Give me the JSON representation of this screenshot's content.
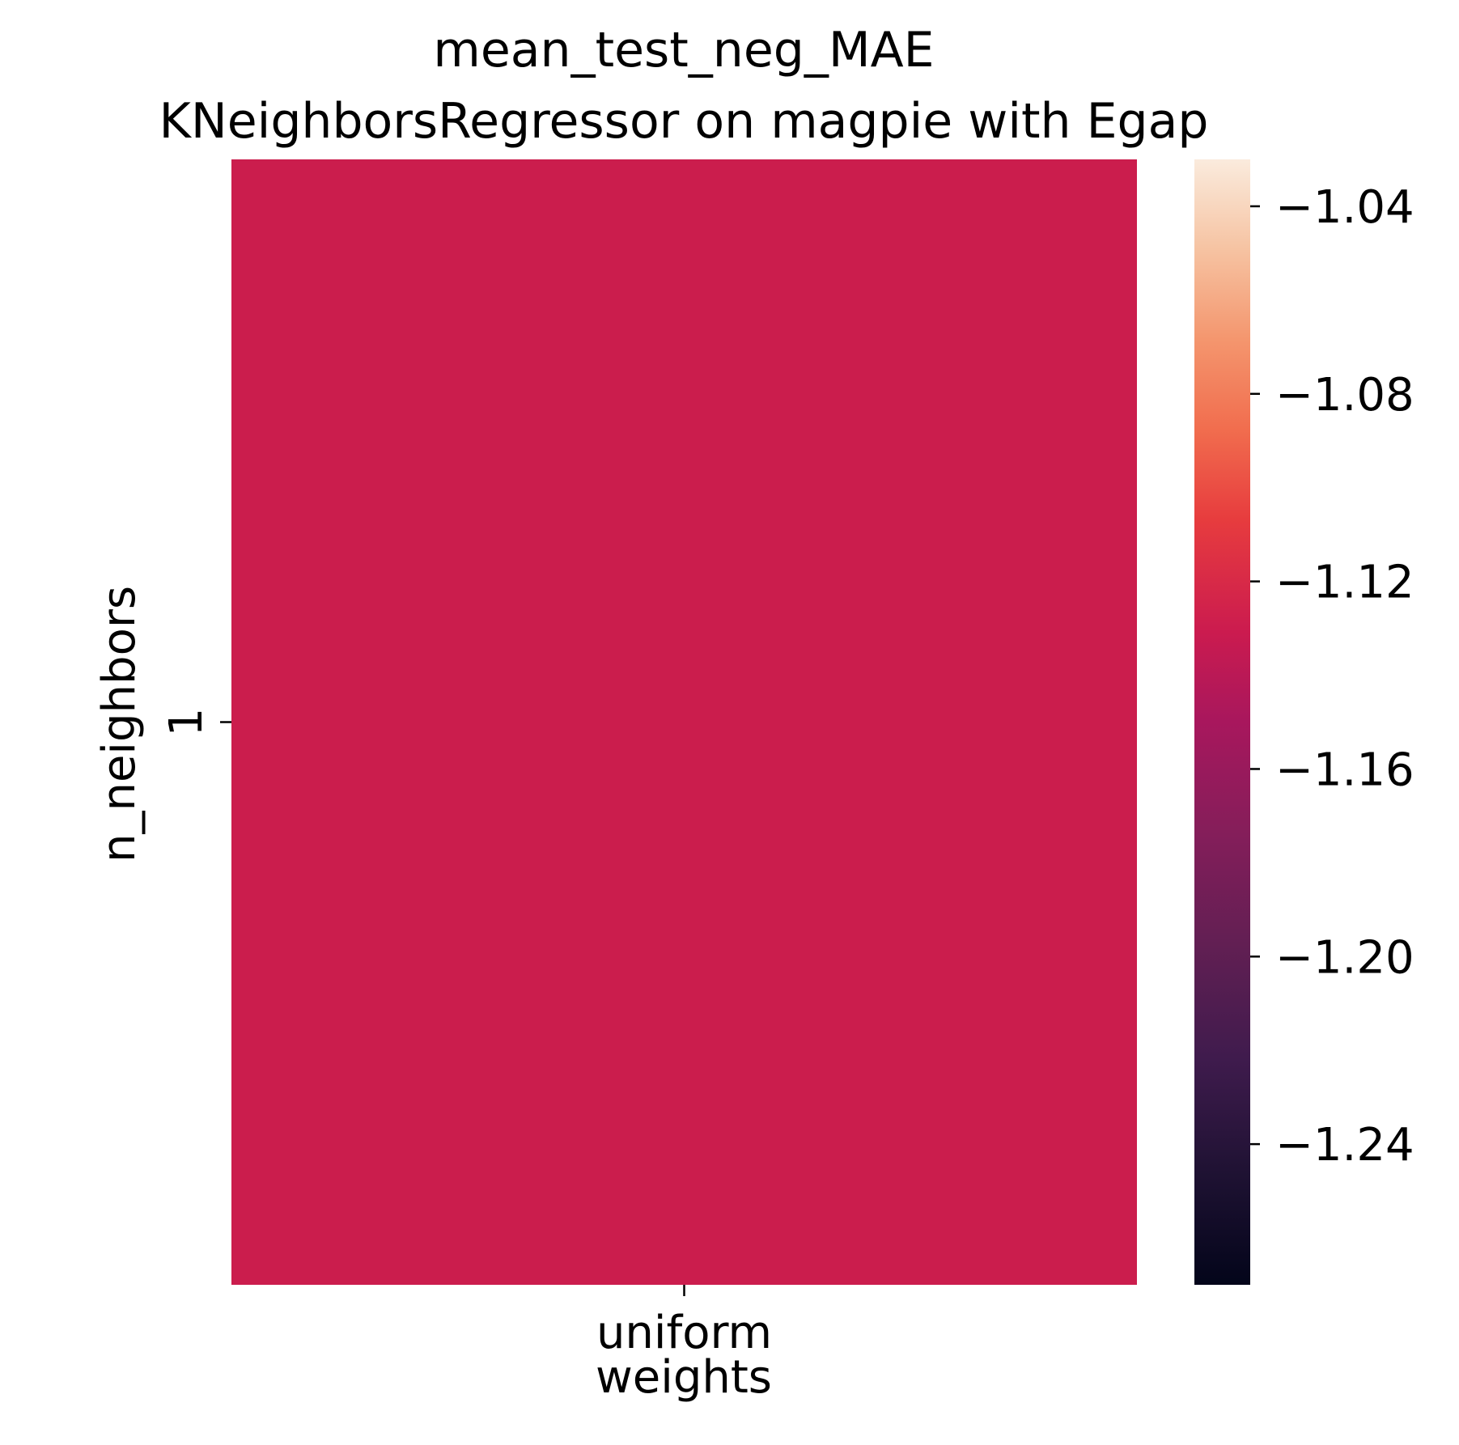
{
  "chart_data": {
    "type": "heatmap",
    "title": "mean_test_neg_MAE\nKNeighborsRegressor on magpie with Egap",
    "xlabel": "weights",
    "ylabel": "n_neighbors",
    "x_categories": [
      "uniform"
    ],
    "y_categories": [
      "1"
    ],
    "values": [
      [
        -1.145
      ]
    ],
    "colorbar": {
      "colormap": "rocket",
      "range": [
        -1.27,
        -1.03
      ],
      "ticks": [
        -1.04,
        -1.08,
        -1.12,
        -1.16,
        -1.2,
        -1.24
      ],
      "tick_labels": [
        "−1.04",
        "−1.08",
        "−1.12",
        "−1.16",
        "−1.20",
        "−1.24"
      ]
    },
    "colors": {
      "cell": "#cb1d4d",
      "text": "#000000"
    }
  }
}
